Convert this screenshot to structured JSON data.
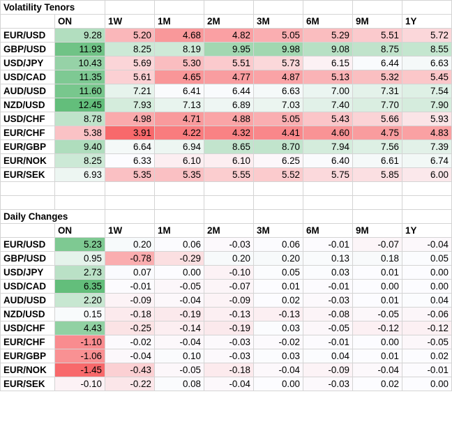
{
  "sections": [
    {
      "title": "Volatility Tenors",
      "kind": "level",
      "columns": [
        "ON",
        "1W",
        "1M",
        "2M",
        "3M",
        "6M",
        "9M",
        "1Y"
      ],
      "rows": [
        {
          "pair": "EUR/USD",
          "values": [
            "9.28",
            "5.20",
            "4.68",
            "4.82",
            "5.05",
            "5.29",
            "5.51",
            "5.72"
          ]
        },
        {
          "pair": "GBP/USD",
          "values": [
            "11.93",
            "8.25",
            "8.19",
            "9.95",
            "9.98",
            "9.08",
            "8.75",
            "8.55"
          ]
        },
        {
          "pair": "USD/JPY",
          "values": [
            "10.43",
            "5.69",
            "5.30",
            "5.51",
            "5.73",
            "6.15",
            "6.44",
            "6.63"
          ]
        },
        {
          "pair": "USD/CAD",
          "values": [
            "11.35",
            "5.61",
            "4.65",
            "4.77",
            "4.87",
            "5.13",
            "5.32",
            "5.45"
          ]
        },
        {
          "pair": "AUD/USD",
          "values": [
            "11.60",
            "7.21",
            "6.41",
            "6.44",
            "6.63",
            "7.00",
            "7.31",
            "7.54"
          ]
        },
        {
          "pair": "NZD/USD",
          "values": [
            "12.45",
            "7.93",
            "7.13",
            "6.89",
            "7.03",
            "7.40",
            "7.70",
            "7.90"
          ]
        },
        {
          "pair": "USD/CHF",
          "values": [
            "8.78",
            "4.98",
            "4.71",
            "4.88",
            "5.05",
            "5.43",
            "5.66",
            "5.93"
          ]
        },
        {
          "pair": "EUR/CHF",
          "values": [
            "5.38",
            "3.91",
            "4.22",
            "4.32",
            "4.41",
            "4.60",
            "4.75",
            "4.83"
          ]
        },
        {
          "pair": "EUR/GBP",
          "values": [
            "9.40",
            "6.64",
            "6.94",
            "8.65",
            "8.70",
            "7.94",
            "7.56",
            "7.39"
          ]
        },
        {
          "pair": "EUR/NOK",
          "values": [
            "8.25",
            "6.33",
            "6.10",
            "6.10",
            "6.25",
            "6.40",
            "6.61",
            "6.74"
          ]
        },
        {
          "pair": "EUR/SEK",
          "values": [
            "6.93",
            "5.35",
            "5.35",
            "5.55",
            "5.52",
            "5.75",
            "5.85",
            "6.00"
          ]
        }
      ]
    },
    {
      "title": "Daily Changes",
      "kind": "change",
      "columns": [
        "ON",
        "1W",
        "1M",
        "2M",
        "3M",
        "6M",
        "9M",
        "1Y"
      ],
      "rows": [
        {
          "pair": "EUR/USD",
          "values": [
            "5.23",
            "0.20",
            "0.06",
            "-0.03",
            "0.06",
            "-0.01",
            "-0.07",
            "-0.04"
          ]
        },
        {
          "pair": "GBP/USD",
          "values": [
            "0.95",
            "-0.78",
            "-0.29",
            "0.20",
            "0.20",
            "0.13",
            "0.18",
            "0.05"
          ]
        },
        {
          "pair": "USD/JPY",
          "values": [
            "2.73",
            "0.07",
            "0.00",
            "-0.10",
            "0.05",
            "0.03",
            "0.01",
            "0.00"
          ]
        },
        {
          "pair": "USD/CAD",
          "values": [
            "6.35",
            "-0.01",
            "-0.05",
            "-0.07",
            "0.01",
            "-0.01",
            "0.00",
            "0.00"
          ]
        },
        {
          "pair": "AUD/USD",
          "values": [
            "2.20",
            "-0.09",
            "-0.04",
            "-0.09",
            "0.02",
            "-0.03",
            "0.01",
            "0.04"
          ]
        },
        {
          "pair": "NZD/USD",
          "values": [
            "0.15",
            "-0.18",
            "-0.19",
            "-0.13",
            "-0.13",
            "-0.08",
            "-0.05",
            "-0.06"
          ]
        },
        {
          "pair": "USD/CHF",
          "values": [
            "4.43",
            "-0.25",
            "-0.14",
            "-0.19",
            "0.03",
            "-0.05",
            "-0.12",
            "-0.12"
          ]
        },
        {
          "pair": "EUR/CHF",
          "values": [
            "-1.10",
            "-0.02",
            "-0.04",
            "-0.03",
            "-0.02",
            "-0.01",
            "0.00",
            "-0.05"
          ]
        },
        {
          "pair": "EUR/GBP",
          "values": [
            "-1.06",
            "-0.04",
            "0.10",
            "-0.03",
            "0.03",
            "0.04",
            "0.01",
            "0.02"
          ]
        },
        {
          "pair": "EUR/NOK",
          "values": [
            "-1.45",
            "-0.43",
            "-0.05",
            "-0.18",
            "-0.04",
            "-0.09",
            "-0.04",
            "-0.01"
          ]
        },
        {
          "pair": "EUR/SEK",
          "values": [
            "-0.10",
            "-0.22",
            "0.08",
            "-0.04",
            "0.00",
            "-0.03",
            "0.02",
            "0.00"
          ]
        }
      ]
    }
  ],
  "colors": {
    "high": "#63be7b",
    "mid": "#fcfcff",
    "low": "#f8696b",
    "grid": "#d4d4d4"
  }
}
